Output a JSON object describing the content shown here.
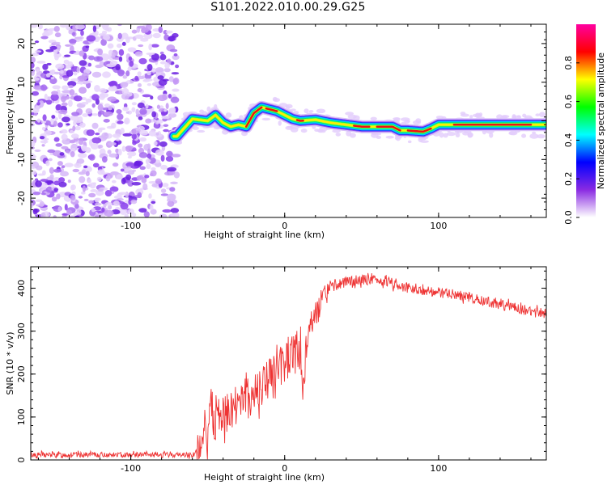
{
  "title": "S101.2022.010.00.29.G25",
  "chart_data": [
    {
      "type": "heatmap",
      "xlabel": "Height of straight line (km)",
      "ylabel": "Frequency (Hz)",
      "xlim": [
        -165,
        170
      ],
      "ylim": [
        -25,
        25
      ],
      "x_ticks": [
        -100,
        0,
        100
      ],
      "y_ticks": [
        -20,
        -10,
        0,
        10,
        20
      ],
      "colorbar": {
        "label": "Normalized spectral amplitude",
        "range": [
          0,
          1
        ],
        "ticks": [
          "0.0",
          "0.2",
          "0.4",
          "0.6",
          "0.8"
        ],
        "tick_values": [
          0,
          0.2,
          0.4,
          0.6,
          0.8
        ],
        "colors": [
          "#ffffff",
          "#8a2be2",
          "#0000ff",
          "#00ffff",
          "#00ff00",
          "#ffff00",
          "#ff0000",
          "#ff00a0"
        ]
      },
      "ridge": {
        "x": [
          -70,
          -60,
          -50,
          -45,
          -40,
          -35,
          -30,
          -25,
          -20,
          -15,
          -10,
          -5,
          0,
          5,
          10,
          20,
          30,
          40,
          50,
          60,
          70,
          75,
          80,
          90,
          95,
          100,
          110,
          120,
          140,
          160,
          170
        ],
        "frequency": [
          -4,
          0.5,
          0,
          1.5,
          -0.5,
          -1.5,
          -1,
          -1.5,
          2,
          3.5,
          3,
          2.5,
          1.5,
          0.5,
          0,
          0.3,
          -0.5,
          -1,
          -1.5,
          -1.5,
          -1.5,
          -2.5,
          -2.5,
          -2.8,
          -2,
          -1,
          -1,
          -1,
          -1,
          -1,
          -1
        ]
      },
      "noise_region_x": [
        -165,
        -70
      ]
    },
    {
      "type": "line",
      "xlabel": "Height of straight line (km)",
      "ylabel": "SNR (10 * v/v)",
      "xlim": [
        -165,
        170
      ],
      "ylim": [
        0,
        450
      ],
      "x_ticks": [
        -100,
        0,
        100
      ],
      "y_ticks": [
        0,
        100,
        200,
        300,
        400
      ],
      "series": [
        {
          "color": "#ee3333",
          "x": [
            -165,
            -140,
            -120,
            -100,
            -80,
            -60,
            -55,
            -52,
            -50,
            -48,
            -45,
            -40,
            -35,
            -30,
            -25,
            -20,
            -15,
            -10,
            -5,
            0,
            5,
            10,
            12,
            15,
            20,
            25,
            30,
            40,
            50,
            60,
            70,
            80,
            90,
            100,
            110,
            120,
            130,
            140,
            150,
            160,
            170
          ],
          "values": [
            12,
            12,
            12,
            12,
            12,
            12,
            25,
            90,
            60,
            120,
            80,
            90,
            110,
            140,
            150,
            150,
            170,
            190,
            200,
            220,
            250,
            260,
            150,
            300,
            340,
            375,
            400,
            415,
            420,
            418,
            412,
            400,
            395,
            390,
            385,
            378,
            370,
            362,
            355,
            345,
            340
          ]
        }
      ]
    }
  ]
}
